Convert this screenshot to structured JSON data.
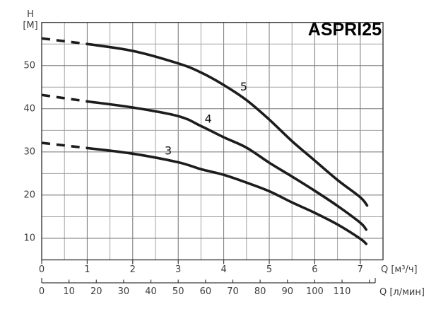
{
  "chart_data": {
    "type": "line",
    "title": "ASPRI25",
    "grid": "on",
    "legend": "inline-curve-labels",
    "y_axis": {
      "label_top": "H",
      "label_unit": "[M]",
      "ticks": [
        50,
        40,
        30,
        20,
        10
      ],
      "range": [
        5,
        60
      ],
      "grid_step": 5
    },
    "x_axis_primary": {
      "unit_label": "Q [м³/ч]",
      "ticks": [
        0,
        1,
        2,
        3,
        4,
        5,
        6,
        7
      ],
      "range": [
        0,
        7.5
      ],
      "grid_step": 0.5
    },
    "x_axis_secondary": {
      "unit_label": "Q [л/мин]",
      "ticks": [
        0,
        10,
        20,
        30,
        40,
        50,
        60,
        70,
        80,
        90,
        100,
        110
      ],
      "axis_end_value": 120,
      "liters_per_m3h": 16.6667
    },
    "series": [
      {
        "name": "5",
        "dashed_until_q": 1,
        "label_at": [
          4.44,
          45.1
        ],
        "points": [
          [
            0,
            56.3
          ],
          [
            1,
            55.0
          ],
          [
            2,
            53.4
          ],
          [
            3,
            50.5
          ],
          [
            3.5,
            48.4
          ],
          [
            4,
            45.5
          ],
          [
            4.5,
            42.0
          ],
          [
            5,
            37.5
          ],
          [
            5.5,
            32.5
          ],
          [
            6,
            28.0
          ],
          [
            6.5,
            23.5
          ],
          [
            7,
            19.5
          ],
          [
            7.15,
            17.6
          ]
        ]
      },
      {
        "name": "4",
        "dashed_until_q": 1,
        "label_at": [
          3.66,
          37.7
        ],
        "points": [
          [
            0,
            43.2
          ],
          [
            1,
            41.7
          ],
          [
            2,
            40.3
          ],
          [
            3,
            38.3
          ],
          [
            3.5,
            36.0
          ],
          [
            4,
            33.4
          ],
          [
            4.5,
            31.0
          ],
          [
            5,
            27.5
          ],
          [
            5.5,
            24.3
          ],
          [
            6,
            21.0
          ],
          [
            6.5,
            17.5
          ],
          [
            7,
            13.6
          ],
          [
            7.13,
            12.0
          ]
        ]
      },
      {
        "name": "3",
        "dashed_until_q": 1,
        "label_at": [
          2.78,
          30.3
        ],
        "points": [
          [
            0,
            32.1
          ],
          [
            1,
            30.9
          ],
          [
            2,
            29.6
          ],
          [
            3,
            27.6
          ],
          [
            3.5,
            26.0
          ],
          [
            4,
            24.7
          ],
          [
            4.5,
            22.9
          ],
          [
            5,
            20.9
          ],
          [
            5.5,
            18.3
          ],
          [
            6,
            15.9
          ],
          [
            6.5,
            13.2
          ],
          [
            7,
            9.9
          ],
          [
            7.13,
            8.7
          ]
        ]
      }
    ]
  },
  "colors": {
    "curve": "#1c1c1c",
    "grid_major": "#757575",
    "grid_minor": "#a3a3a3",
    "border": "#3c3c3c",
    "text": "#3d3d3d",
    "curve_label_text": "#141414",
    "title_text": "#000000",
    "background": "#ffffff"
  }
}
